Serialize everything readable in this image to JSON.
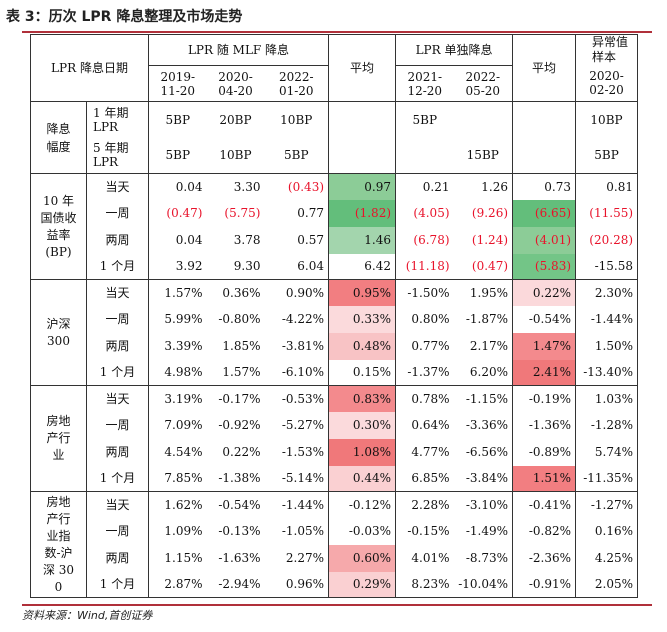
{
  "title": "表 3：历次 LPR 降息整理及市场走势",
  "footer": "资料来源：Wind,首创证券",
  "header": {
    "lpr_date": "LPR 降息日期",
    "group1": "LPR 随 MLF 降息",
    "avg1": "平均",
    "group2": "LPR 单独降息",
    "avg2": "平均",
    "outlier": "异常值样本",
    "dates": [
      "2019-11-20",
      "2020-04-20",
      "2022-01-20",
      "2021-12-20",
      "2022-05-20",
      "2020-02-20"
    ]
  },
  "cut": {
    "label": "降息幅度",
    "row1": {
      "term": "1 年期 LPR",
      "vals": [
        "5BP",
        "20BP",
        "10BP",
        "",
        "5BP",
        "",
        "",
        "10BP"
      ]
    },
    "row2": {
      "term": "5 年期 LPR",
      "vals": [
        "5BP",
        "10BP",
        "5BP",
        "",
        "",
        "15BP",
        "",
        "5BP"
      ]
    }
  },
  "sections": [
    {
      "label": "10 年国债收益率 (BP)",
      "rows": [
        {
          "period": "当天",
          "vals": [
            "0.04",
            "3.30",
            "(0.43)",
            "0.97",
            "0.21",
            "1.26",
            "0.73",
            "0.81"
          ]
        },
        {
          "period": "一周",
          "vals": [
            "(0.47)",
            "(5.75)",
            "0.77",
            "(1.82)",
            "(4.05)",
            "(9.26)",
            "(6.65)",
            "(11.55)"
          ]
        },
        {
          "period": "两周",
          "vals": [
            "0.04",
            "3.78",
            "0.57",
            "1.46",
            "(6.78)",
            "(1.24)",
            "(4.01)",
            "(20.28)"
          ]
        },
        {
          "period": "1 个月",
          "vals": [
            "3.92",
            "9.30",
            "6.04",
            "6.42",
            "(11.18)",
            "(0.47)",
            "(5.83)",
            "-15.58"
          ]
        }
      ]
    },
    {
      "label": "沪深 300",
      "rows": [
        {
          "period": "当天",
          "vals": [
            "1.57%",
            "0.36%",
            "0.90%",
            "0.95%",
            "-1.50%",
            "1.95%",
            "0.22%",
            "2.30%"
          ]
        },
        {
          "period": "一周",
          "vals": [
            "5.99%",
            "-0.80%",
            "-4.22%",
            "0.33%",
            "0.80%",
            "-1.87%",
            "-0.54%",
            "-1.44%"
          ]
        },
        {
          "period": "两周",
          "vals": [
            "3.39%",
            "1.85%",
            "-3.81%",
            "0.48%",
            "0.77%",
            "2.17%",
            "1.47%",
            "1.50%"
          ]
        },
        {
          "period": "1 个月",
          "vals": [
            "4.98%",
            "1.57%",
            "-6.10%",
            "0.15%",
            "-1.37%",
            "6.20%",
            "2.41%",
            "-13.40%"
          ]
        }
      ]
    },
    {
      "label": "房地产行业",
      "rows": [
        {
          "period": "当天",
          "vals": [
            "3.19%",
            "-0.17%",
            "-0.53%",
            "0.83%",
            "0.78%",
            "-1.15%",
            "-0.19%",
            "1.03%"
          ]
        },
        {
          "period": "一周",
          "vals": [
            "7.09%",
            "-0.92%",
            "-5.27%",
            "0.30%",
            "0.64%",
            "-3.36%",
            "-1.36%",
            "-1.28%"
          ]
        },
        {
          "period": "两周",
          "vals": [
            "4.54%",
            "0.22%",
            "-1.53%",
            "1.08%",
            "4.77%",
            "-6.56%",
            "-0.89%",
            "5.74%"
          ]
        },
        {
          "period": "1 个月",
          "vals": [
            "7.85%",
            "-1.38%",
            "-5.14%",
            "0.44%",
            "6.85%",
            "-3.84%",
            "1.51%",
            "-11.35%"
          ]
        }
      ]
    },
    {
      "label": "房地产行业指数-沪深 300",
      "rows": [
        {
          "period": "当天",
          "vals": [
            "1.62%",
            "-0.54%",
            "-1.44%",
            "-0.12%",
            "2.28%",
            "-3.10%",
            "-0.41%",
            "-1.27%"
          ]
        },
        {
          "period": "一周",
          "vals": [
            "1.09%",
            "-0.13%",
            "-1.05%",
            "-0.03%",
            "-0.15%",
            "-1.49%",
            "-0.82%",
            "0.16%"
          ]
        },
        {
          "period": "两周",
          "vals": [
            "1.15%",
            "-1.63%",
            "2.27%",
            "0.60%",
            "4.01%",
            "-8.73%",
            "-2.36%",
            "4.25%"
          ]
        },
        {
          "period": "1 个月",
          "vals": [
            "2.87%",
            "-2.94%",
            "0.96%",
            "0.29%",
            "8.23%",
            "-10.04%",
            "-0.91%",
            "2.05%"
          ]
        }
      ]
    }
  ],
  "colors": {
    "green_dark": "#63be7b",
    "green_mid": "#8ccc97",
    "green_light": "#b3dcba",
    "red_dark": "#f0787a",
    "red_mid": "#f6aeb1",
    "red_light": "#fbd9db",
    "neg_text": "#e8132b",
    "rule": "#b0303a"
  },
  "cell_colors": [
    [
      "",
      "",
      "",
      "#8ccc97",
      "",
      "",
      "",
      ""
    ],
    [
      "",
      "",
      "",
      "#63be7b",
      "",
      "",
      "#63be7b",
      ""
    ],
    [
      "",
      "",
      "",
      "#a3d5ad",
      "",
      "",
      "#8ccc97",
      ""
    ],
    [
      "",
      "",
      "",
      "",
      "",
      "",
      "#73c587",
      ""
    ],
    [
      "",
      "",
      "",
      "#f27e81",
      "",
      "",
      "#fbd9db",
      ""
    ],
    [
      "",
      "",
      "",
      "#fbdadc",
      "",
      "",
      "",
      ""
    ],
    [
      "",
      "",
      "",
      "#f8c3c5",
      "",
      "",
      "#f38a8d",
      ""
    ],
    [
      "",
      "",
      "",
      "",
      "",
      "",
      "#f0787a",
      ""
    ],
    [
      "",
      "",
      "",
      "#f38a8d",
      "",
      "",
      "",
      ""
    ],
    [
      "",
      "",
      "",
      "#fbdadc",
      "",
      "",
      "",
      ""
    ],
    [
      "",
      "",
      "",
      "#f0787a",
      "",
      "",
      "",
      ""
    ],
    [
      "",
      "",
      "",
      "#fad0d2",
      "",
      "",
      "#f27e81",
      ""
    ],
    [
      "",
      "",
      "",
      "",
      "",
      "",
      "",
      ""
    ],
    [
      "",
      "",
      "",
      "",
      "",
      "",
      "",
      ""
    ],
    [
      "",
      "",
      "",
      "#f6a9ab",
      "",
      "",
      "",
      ""
    ],
    [
      "",
      "",
      "",
      "#fad0d2",
      "",
      "",
      "",
      ""
    ]
  ]
}
